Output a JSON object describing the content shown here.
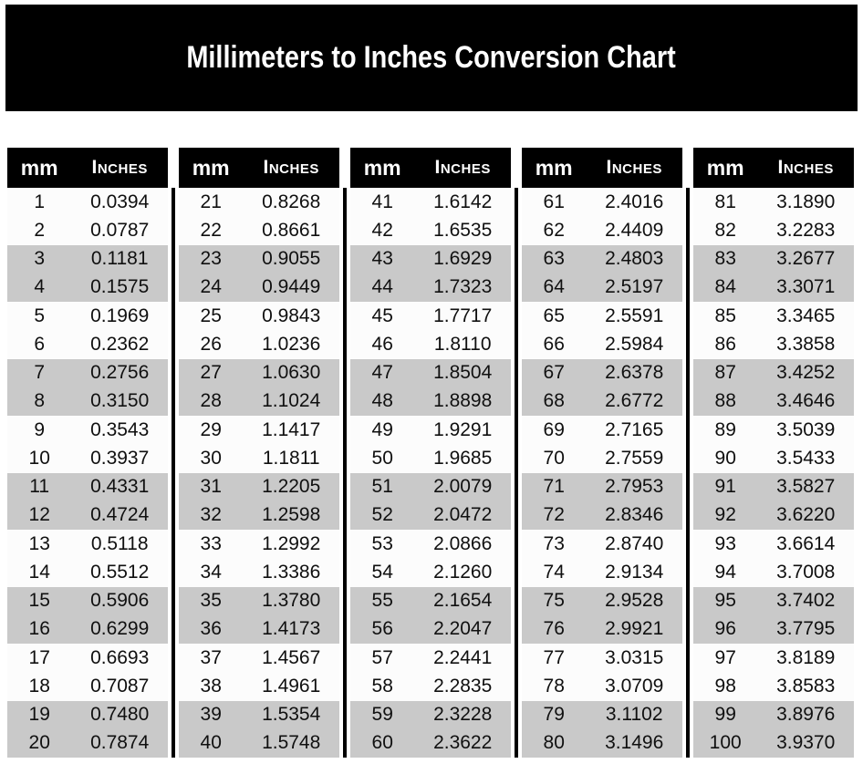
{
  "page": {
    "title": "Millimeters to Inches Conversion Chart"
  },
  "colors": {
    "banner_bg": "#000000",
    "banner_text": "#ffffff",
    "header_bg": "#000000",
    "header_text": "#ffffff",
    "shaded_row": "#c9c9c9",
    "plain_row": "#fcfcfc",
    "divider": "#000000",
    "value_text": "#101010"
  },
  "chart_data": {
    "type": "table",
    "title": "Millimeters to Inches Conversion Chart",
    "column_headers": [
      "mm",
      "Inches"
    ],
    "layout": "five side-by-side sub-tables of 20 rows each, separated by vertical black rules; rows shaded in alternating pairs (two plain, two gray)",
    "tables": [
      {
        "rows": [
          [
            1,
            "0.0394"
          ],
          [
            2,
            "0.0787"
          ],
          [
            3,
            "0.1181"
          ],
          [
            4,
            "0.1575"
          ],
          [
            5,
            "0.1969"
          ],
          [
            6,
            "0.2362"
          ],
          [
            7,
            "0.2756"
          ],
          [
            8,
            "0.3150"
          ],
          [
            9,
            "0.3543"
          ],
          [
            10,
            "0.3937"
          ],
          [
            11,
            "0.4331"
          ],
          [
            12,
            "0.4724"
          ],
          [
            13,
            "0.5118"
          ],
          [
            14,
            "0.5512"
          ],
          [
            15,
            "0.5906"
          ],
          [
            16,
            "0.6299"
          ],
          [
            17,
            "0.6693"
          ],
          [
            18,
            "0.7087"
          ],
          [
            19,
            "0.7480"
          ],
          [
            20,
            "0.7874"
          ]
        ]
      },
      {
        "rows": [
          [
            21,
            "0.8268"
          ],
          [
            22,
            "0.8661"
          ],
          [
            23,
            "0.9055"
          ],
          [
            24,
            "0.9449"
          ],
          [
            25,
            "0.9843"
          ],
          [
            26,
            "1.0236"
          ],
          [
            27,
            "1.0630"
          ],
          [
            28,
            "1.1024"
          ],
          [
            29,
            "1.1417"
          ],
          [
            30,
            "1.1811"
          ],
          [
            31,
            "1.2205"
          ],
          [
            32,
            "1.2598"
          ],
          [
            33,
            "1.2992"
          ],
          [
            34,
            "1.3386"
          ],
          [
            35,
            "1.3780"
          ],
          [
            36,
            "1.4173"
          ],
          [
            37,
            "1.4567"
          ],
          [
            38,
            "1.4961"
          ],
          [
            39,
            "1.5354"
          ],
          [
            40,
            "1.5748"
          ]
        ]
      },
      {
        "rows": [
          [
            41,
            "1.6142"
          ],
          [
            42,
            "1.6535"
          ],
          [
            43,
            "1.6929"
          ],
          [
            44,
            "1.7323"
          ],
          [
            45,
            "1.7717"
          ],
          [
            46,
            "1.8110"
          ],
          [
            47,
            "1.8504"
          ],
          [
            48,
            "1.8898"
          ],
          [
            49,
            "1.9291"
          ],
          [
            50,
            "1.9685"
          ],
          [
            51,
            "2.0079"
          ],
          [
            52,
            "2.0472"
          ],
          [
            53,
            "2.0866"
          ],
          [
            54,
            "2.1260"
          ],
          [
            55,
            "2.1654"
          ],
          [
            56,
            "2.2047"
          ],
          [
            57,
            "2.2441"
          ],
          [
            58,
            "2.2835"
          ],
          [
            59,
            "2.3228"
          ],
          [
            60,
            "2.3622"
          ]
        ]
      },
      {
        "rows": [
          [
            61,
            "2.4016"
          ],
          [
            62,
            "2.4409"
          ],
          [
            63,
            "2.4803"
          ],
          [
            64,
            "2.5197"
          ],
          [
            65,
            "2.5591"
          ],
          [
            66,
            "2.5984"
          ],
          [
            67,
            "2.6378"
          ],
          [
            68,
            "2.6772"
          ],
          [
            69,
            "2.7165"
          ],
          [
            70,
            "2.7559"
          ],
          [
            71,
            "2.7953"
          ],
          [
            72,
            "2.8346"
          ],
          [
            73,
            "2.8740"
          ],
          [
            74,
            "2.9134"
          ],
          [
            75,
            "2.9528"
          ],
          [
            76,
            "2.9921"
          ],
          [
            77,
            "3.0315"
          ],
          [
            78,
            "3.0709"
          ],
          [
            79,
            "3.1102"
          ],
          [
            80,
            "3.1496"
          ]
        ]
      },
      {
        "rows": [
          [
            81,
            "3.1890"
          ],
          [
            82,
            "3.2283"
          ],
          [
            83,
            "3.2677"
          ],
          [
            84,
            "3.3071"
          ],
          [
            85,
            "3.3465"
          ],
          [
            86,
            "3.3858"
          ],
          [
            87,
            "3.4252"
          ],
          [
            88,
            "3.4646"
          ],
          [
            89,
            "3.5039"
          ],
          [
            90,
            "3.5433"
          ],
          [
            91,
            "3.5827"
          ],
          [
            92,
            "3.6220"
          ],
          [
            93,
            "3.6614"
          ],
          [
            94,
            "3.7008"
          ],
          [
            95,
            "3.7402"
          ],
          [
            96,
            "3.7795"
          ],
          [
            97,
            "3.8189"
          ],
          [
            98,
            "3.8583"
          ],
          [
            99,
            "3.8976"
          ],
          [
            100,
            "3.9370"
          ]
        ]
      }
    ]
  }
}
